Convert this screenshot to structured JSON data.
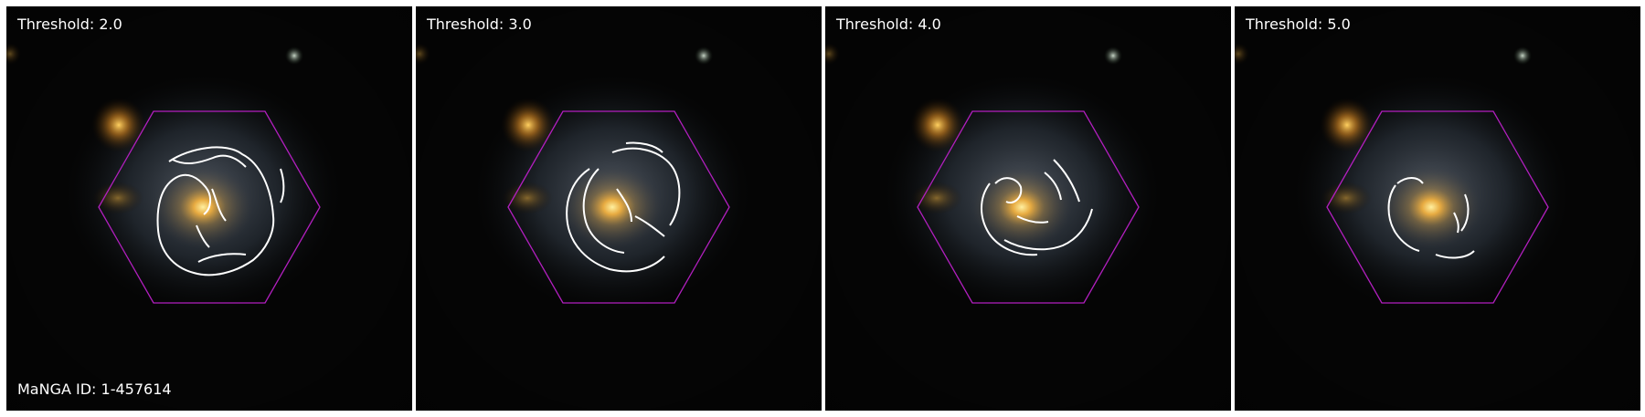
{
  "figure": {
    "panels": [
      {
        "label": "Threshold: 2.0"
      },
      {
        "label": "Threshold: 3.0"
      },
      {
        "label": "Threshold: 4.0"
      },
      {
        "label": "Threshold: 5.0"
      }
    ],
    "manga_id_label": "MaNGA ID: 1-457614"
  },
  "colors": {
    "hexagon": "#b21fbf",
    "contour": "#ffffff",
    "background": "#050505",
    "galaxy_core": "#f4b840",
    "galaxy_disk": "#5a6a78"
  }
}
